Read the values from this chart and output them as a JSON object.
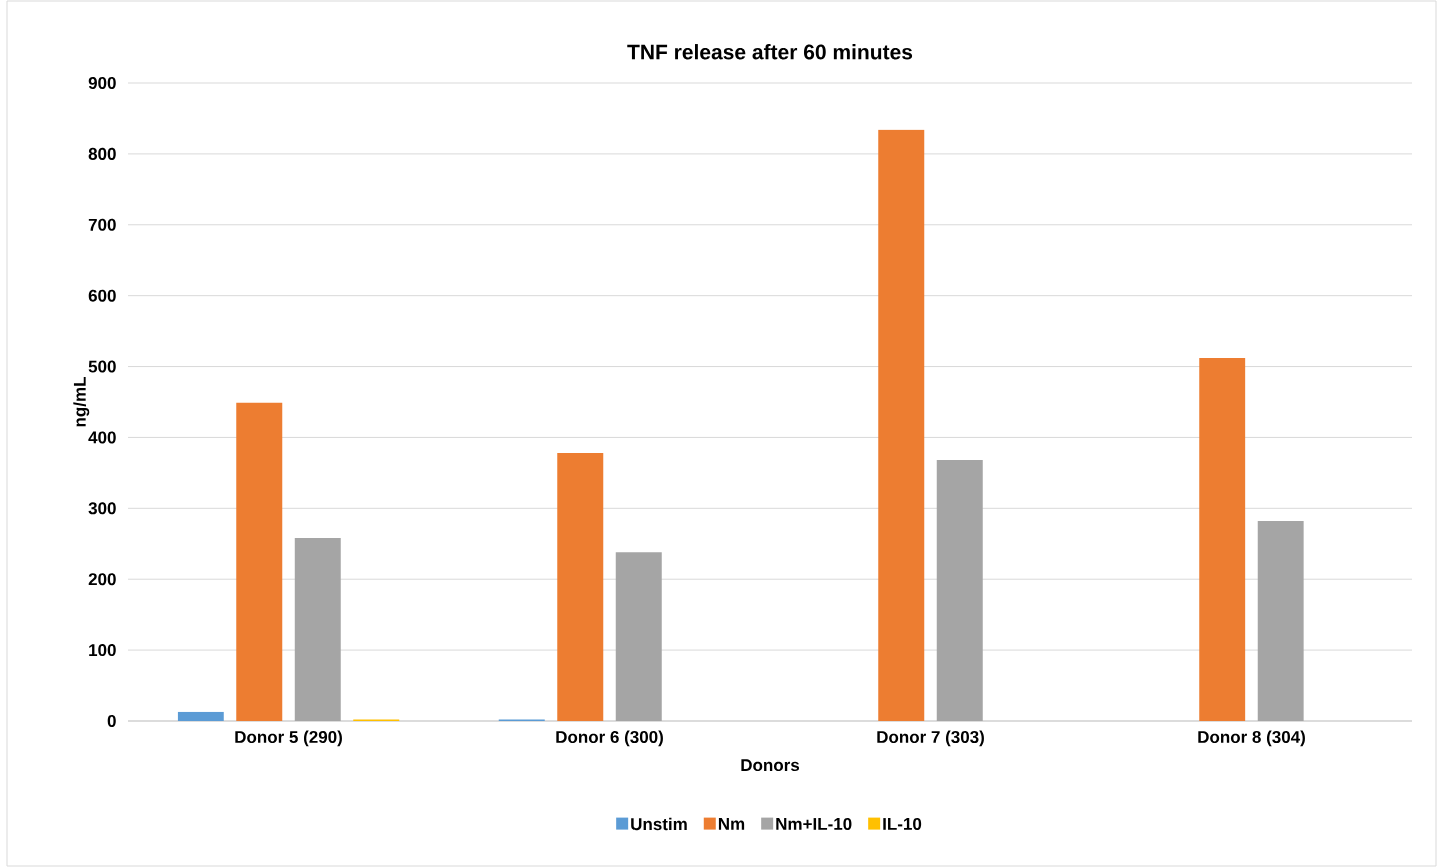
{
  "chart_data": {
    "type": "bar",
    "title": "TNF release after 60 minutes",
    "xlabel": "Donors",
    "ylabel": "ng/mL",
    "categories": [
      "Donor 5 (290)",
      "Donor 6 (300)",
      "Donor 7 (303)",
      "Donor 8 (304)"
    ],
    "series": [
      {
        "name": "Unstim",
        "color": "#5b9bd5",
        "values": [
          13,
          2,
          0,
          0
        ]
      },
      {
        "name": "Nm",
        "color": "#ed7d31",
        "values": [
          449,
          378,
          834,
          512
        ]
      },
      {
        "name": "Nm+IL-10",
        "color": "#a5a5a5",
        "values": [
          258,
          238,
          368,
          282
        ]
      },
      {
        "name": "IL-10",
        "color": "#ffc000",
        "values": [
          2,
          0,
          0,
          0
        ]
      }
    ],
    "ylim": [
      0,
      900
    ],
    "yticks": [
      0,
      100,
      200,
      300,
      400,
      500,
      600,
      700,
      800,
      900
    ],
    "grid": "y",
    "legend": "bottom"
  }
}
